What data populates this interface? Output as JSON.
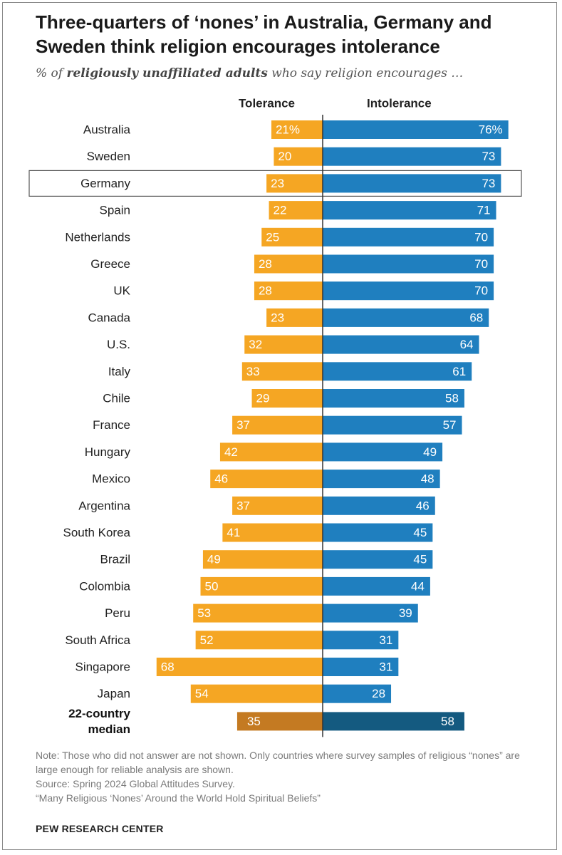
{
  "title": "Three-quarters of ‘nones’ in Australia, Germany and Sweden think religion encourages intolerance",
  "subtitle": {
    "prefix": "% of ",
    "emphasis": "religiously unaffiliated adults",
    "suffix": " who say religion encourages …"
  },
  "chart_data": {
    "type": "bar",
    "orientation": "horizontal-diverging",
    "series": [
      {
        "name": "Tolerance",
        "color": "#f5a623",
        "values": [
          21,
          20,
          23,
          22,
          25,
          28,
          28,
          23,
          32,
          33,
          29,
          37,
          42,
          46,
          37,
          41,
          49,
          50,
          53,
          52,
          68,
          54
        ]
      },
      {
        "name": "Intolerance",
        "color": "#1f7fbf",
        "values": [
          76,
          73,
          73,
          71,
          70,
          70,
          70,
          68,
          64,
          61,
          58,
          57,
          49,
          48,
          46,
          45,
          45,
          44,
          39,
          31,
          31,
          28
        ]
      }
    ],
    "categories": [
      "Australia",
      "Sweden",
      "Germany",
      "Spain",
      "Netherlands",
      "Greece",
      "UK",
      "Canada",
      "U.S.",
      "Italy",
      "Chile",
      "France",
      "Hungary",
      "Mexico",
      "Argentina",
      "South Korea",
      "Brazil",
      "Colombia",
      "Peru",
      "South Africa",
      "Singapore",
      "Japan"
    ],
    "highlight": "Germany",
    "median": {
      "label_line1": "22-country",
      "label_line2": "median",
      "tolerance": 35,
      "intolerance": 58,
      "tolerance_color": "#c47a22",
      "intolerance_color": "#145a80"
    },
    "first_row_suffix": "%"
  },
  "notes": {
    "note": "Note: Those who did not answer are not shown. Only countries where survey samples of religious “nones” are large enough for reliable analysis are shown.",
    "source": "Source: Spring 2024 Global Attitudes Survey.",
    "report": "“Many Religious ‘Nones’ Around the World Hold Spiritual Beliefs”"
  },
  "brand": "PEW RESEARCH CENTER"
}
